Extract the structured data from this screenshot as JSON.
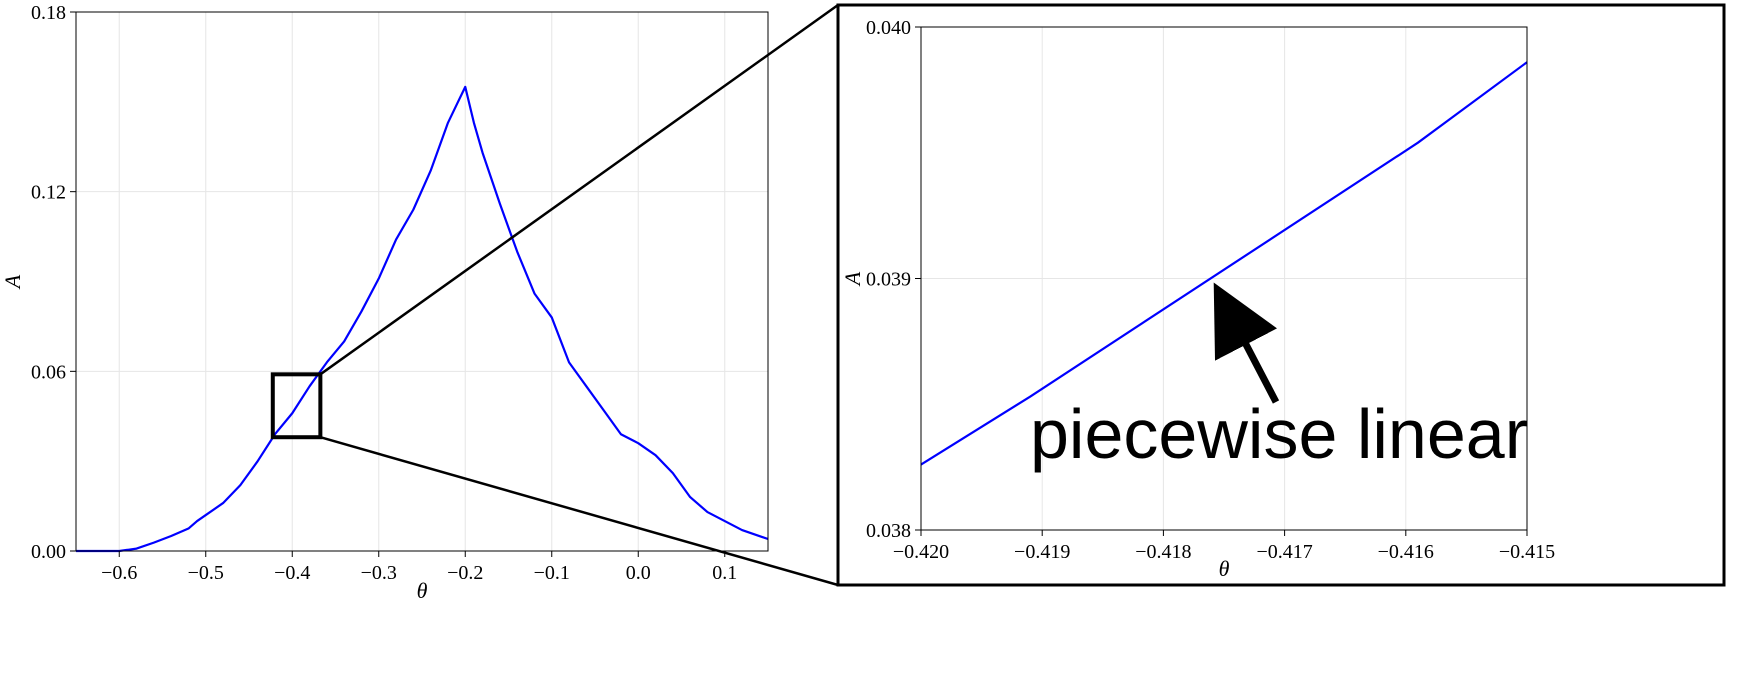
{
  "colors": {
    "line": "#0000ff",
    "axis": "#000000",
    "grid": "#e6e6e6",
    "annotation": "#000000"
  },
  "chart_data": [
    {
      "type": "line",
      "title": "",
      "xlabel": "θ",
      "ylabel": "A",
      "xlim": [
        -0.65,
        0.15
      ],
      "ylim": [
        0.0,
        0.18
      ],
      "xticks": [
        -0.6,
        -0.5,
        -0.4,
        -0.3,
        -0.2,
        -0.1,
        0.0,
        0.1
      ],
      "xtick_labels": [
        "−0.6",
        "−0.5",
        "−0.4",
        "−0.3",
        "−0.2",
        "−0.1",
        "0.0",
        "0.1"
      ],
      "yticks": [
        0.0,
        0.06,
        0.12,
        0.18
      ],
      "ytick_labels": [
        "0.00",
        "0.06",
        "0.12",
        "0.18"
      ],
      "grid": true,
      "series": [
        {
          "x": [
            -0.65,
            -0.6,
            -0.58,
            -0.56,
            -0.54,
            -0.52,
            -0.51,
            -0.5,
            -0.48,
            -0.46,
            -0.44,
            -0.42,
            -0.4,
            -0.38,
            -0.36,
            -0.34,
            -0.32,
            -0.3,
            -0.28,
            -0.26,
            -0.24,
            -0.22,
            -0.21,
            -0.2,
            -0.19,
            -0.18,
            -0.16,
            -0.14,
            -0.12,
            -0.1,
            -0.08,
            -0.06,
            -0.04,
            -0.02,
            0.0,
            0.02,
            0.04,
            0.06,
            0.08,
            0.1,
            0.12,
            0.15
          ],
          "y": [
            0.0,
            0.0,
            0.0008,
            0.0028,
            0.005,
            0.0075,
            0.01,
            0.012,
            0.016,
            0.022,
            0.03,
            0.039,
            0.046,
            0.055,
            0.063,
            0.07,
            0.08,
            0.091,
            0.104,
            0.114,
            0.127,
            0.143,
            0.149,
            0.155,
            0.143,
            0.133,
            0.116,
            0.1,
            0.086,
            0.078,
            0.063,
            0.055,
            0.047,
            0.039,
            0.036,
            0.032,
            0.026,
            0.018,
            0.013,
            0.01,
            0.007,
            0.004
          ]
        }
      ],
      "zoom_box": {
        "x": [
          -0.4225,
          -0.3675
        ],
        "y": [
          0.038,
          0.059
        ]
      }
    },
    {
      "type": "line",
      "title": "",
      "xlabel": "θ",
      "ylabel": "A",
      "xlim": [
        -0.42,
        -0.415
      ],
      "ylim": [
        0.038,
        0.04
      ],
      "xticks": [
        -0.42,
        -0.419,
        -0.418,
        -0.417,
        -0.416,
        -0.415
      ],
      "xtick_labels": [
        "−0.420",
        "−0.419",
        "−0.418",
        "−0.417",
        "−0.416",
        "−0.415"
      ],
      "yticks": [
        0.038,
        0.039,
        0.04
      ],
      "ytick_labels": [
        "0.038",
        "0.039",
        "0.040"
      ],
      "grid": true,
      "series": [
        {
          "x": [
            -0.42,
            -0.4191,
            -0.4159,
            -0.415
          ],
          "y": [
            0.03826,
            0.03853,
            0.03954,
            0.03986
          ]
        }
      ],
      "annotation": {
        "text": "piecewise linear",
        "arrow_to": {
          "x": -0.4176,
          "y": 0.03898
        }
      }
    }
  ]
}
